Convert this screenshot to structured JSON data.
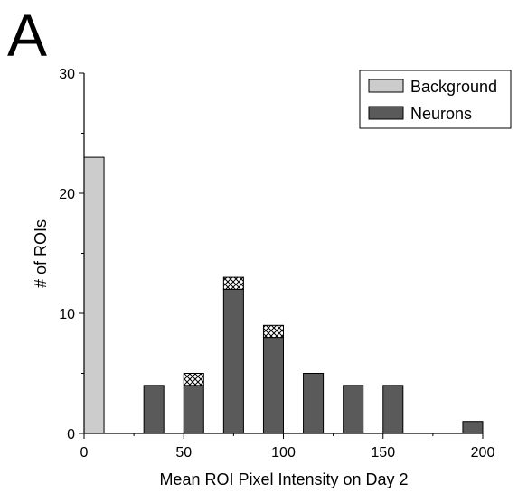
{
  "panel_label": "A",
  "colors": {
    "background_bar": "#cccccc",
    "neuron_bar": "#5a5a5a",
    "hatch_fill": "#ffffff",
    "stroke": "#000000"
  },
  "chart_data": {
    "type": "bar",
    "title": "",
    "xlabel": "Mean ROI Pixel Intensity on Day 2",
    "ylabel": "# of ROIs",
    "xlim": [
      0,
      200
    ],
    "ylim": [
      0,
      30
    ],
    "x_ticks": [
      0,
      50,
      100,
      150,
      200
    ],
    "y_ticks": [
      0,
      10,
      20,
      30
    ],
    "bar_width": 10,
    "legend_position": "top-right",
    "series": [
      {
        "name": "Background",
        "style": "light-gray",
        "x": [
          5
        ],
        "values": [
          23
        ]
      },
      {
        "name": "Neurons",
        "style": "dark-gray",
        "x": [
          35,
          55,
          75,
          95,
          115,
          135,
          155,
          195
        ],
        "values": [
          4,
          4,
          12,
          8,
          5,
          4,
          4,
          1
        ]
      },
      {
        "style": "cross-hatched",
        "stacked_on": "Neurons",
        "x": [
          55,
          75,
          95
        ],
        "values": [
          1,
          1,
          1
        ]
      }
    ]
  }
}
